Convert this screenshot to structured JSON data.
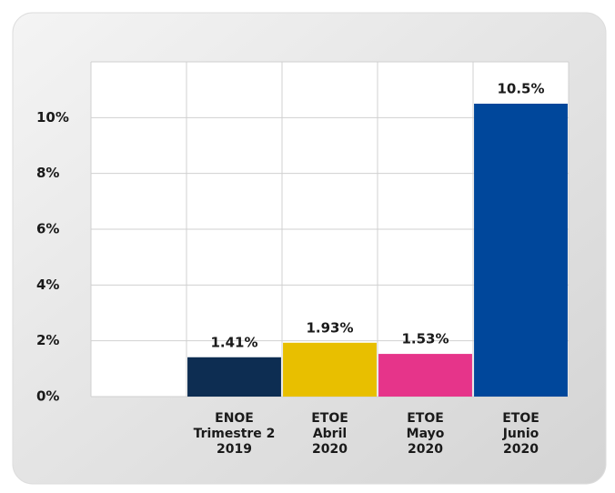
{
  "chart_data": {
    "type": "bar",
    "categories": [
      null,
      "ENOE\nTrimestre 2\n2019",
      "ETOE\nAbril\n2020",
      "ETOE\nMayo\n2020",
      "ETOE\nJunio\n2020"
    ],
    "values": [
      null,
      1.41,
      1.93,
      1.53,
      10.5
    ],
    "value_labels": [
      null,
      "1.41%",
      "1.93%",
      "1.53%",
      "10.5%"
    ],
    "colors": [
      null,
      "#0d2d52",
      "#e8bf00",
      "#e6348a",
      "#00479b"
    ],
    "ylim": [
      0,
      12
    ],
    "yticks": [
      {
        "value": 0,
        "label": "0%"
      },
      {
        "value": 2,
        "label": "2%"
      },
      {
        "value": 4,
        "label": "4%"
      },
      {
        "value": 6,
        "label": "6%"
      },
      {
        "value": 8,
        "label": "8%"
      },
      {
        "value": 10,
        "label": "10%"
      }
    ],
    "grid": true
  }
}
